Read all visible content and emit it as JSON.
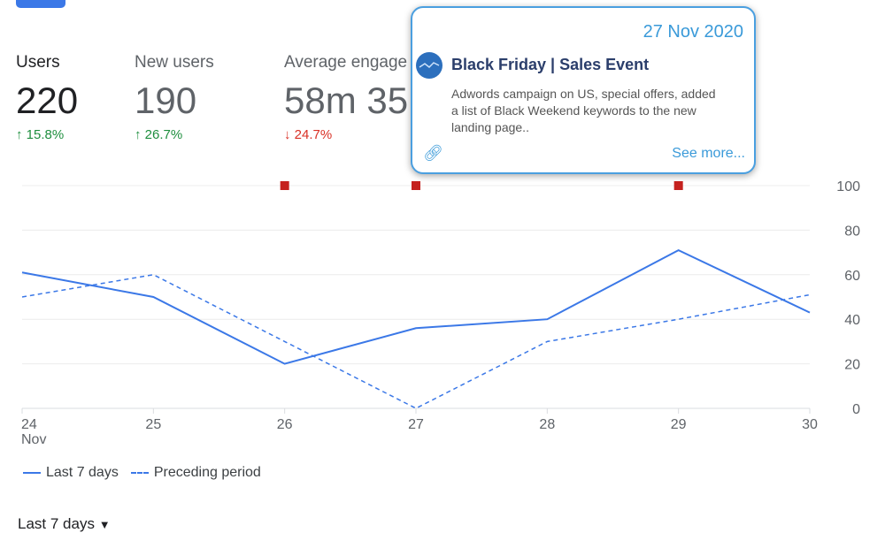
{
  "metrics": [
    {
      "label": "Users",
      "value": "220",
      "change": "15.8%",
      "direction": "up"
    },
    {
      "label": "New users",
      "value": "190",
      "change": "26.7%",
      "direction": "up"
    },
    {
      "label": "Average engage",
      "value": "58m 35",
      "change": "24.7%",
      "direction": "down"
    }
  ],
  "arrows": {
    "up": "↑",
    "down": "↓"
  },
  "chart_data": {
    "type": "line",
    "x": [
      "24",
      "25",
      "26",
      "27",
      "28",
      "29",
      "30"
    ],
    "x_sublabel": "Nov",
    "ylim": [
      0,
      100
    ],
    "yticks": [
      "0",
      "20",
      "40",
      "60",
      "80",
      "100"
    ],
    "y_axis_side": "right",
    "grid": true,
    "series": [
      {
        "name": "Last 7 days",
        "style": "solid",
        "color": "#3b78e7",
        "values": [
          61,
          50,
          20,
          36,
          40,
          71,
          43
        ]
      },
      {
        "name": "Preceding period",
        "style": "dashed",
        "color": "#3b78e7",
        "values": [
          50,
          60,
          30,
          0,
          30,
          40,
          51
        ]
      }
    ],
    "annotation_markers": [
      "26",
      "27",
      "29"
    ],
    "marker_color": "#c5221f",
    "legend_position": "bottom-left"
  },
  "tooltip": {
    "date": "27 Nov 2020",
    "title": "Black Friday | Sales Event",
    "description": "Adwords campaign on US, special offers, added a list of Black Weekend keywords to the new landing page..",
    "link_label": "See more..."
  },
  "range_selector": {
    "label": "Last 7 days",
    "arrow": "▼"
  }
}
